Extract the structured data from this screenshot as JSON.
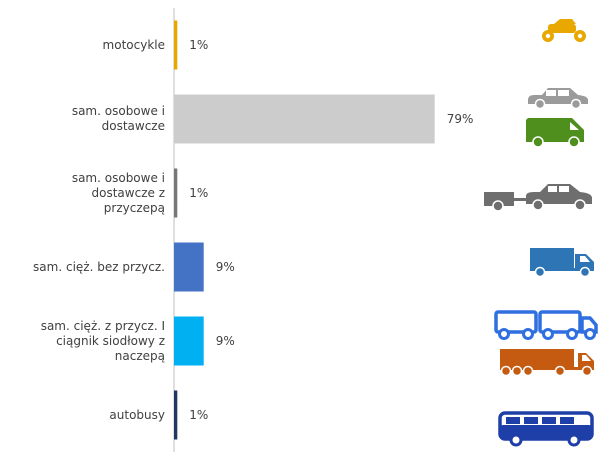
{
  "chart_data": {
    "type": "bar",
    "orientation": "horizontal",
    "categories": [
      "motocykle",
      "sam. osobowe i dostawcze",
      "sam. osobowe i dostawcze z przyczepą",
      "sam. cięż. bez przycz.",
      "sam. cięż. z przycz. I ciągnik siodłowy z naczepą",
      "autobusy"
    ],
    "category_lines": [
      [
        "motocykle"
      ],
      [
        "sam. osobowe i",
        "dostawcze"
      ],
      [
        "sam. osobowe i",
        "dostawcze z",
        "przyczepą"
      ],
      [
        "sam. cięż. bez przycz."
      ],
      [
        "sam. cięż. z przycz. I",
        "ciągnik siodłowy z",
        "naczepą"
      ],
      [
        "autobusy"
      ]
    ],
    "values": [
      1,
      79,
      1,
      9,
      9,
      1
    ],
    "value_labels": [
      "1%",
      "79%",
      "1%",
      "9%",
      "9%",
      "1%"
    ],
    "colors": [
      "#E8A800",
      "#CCCCCC",
      "#777777",
      "#4472C4",
      "#00B0F0",
      "#1F3864"
    ],
    "xlim": [
      0,
      100
    ],
    "grid": false,
    "legend": "none",
    "icons": [
      [
        "motorcycle-icon"
      ],
      [
        "car-icon",
        "van-icon"
      ],
      [
        "car-with-trailer-icon"
      ],
      [
        "truck-icon"
      ],
      [
        "truck-with-trailer-icon",
        "tractor-semitrailer-icon"
      ],
      [
        "bus-icon"
      ]
    ],
    "icon_colors": {
      "motorcycle": "#E8A800",
      "car": "#9B9B9B",
      "van": "#4E8F1E",
      "car_trailer": "#6E6E6E",
      "truck": "#2E75B6",
      "truck_trailer": "#2F6FE0",
      "semitrailer": "#C55A11",
      "bus": "#1F3FA8"
    }
  }
}
